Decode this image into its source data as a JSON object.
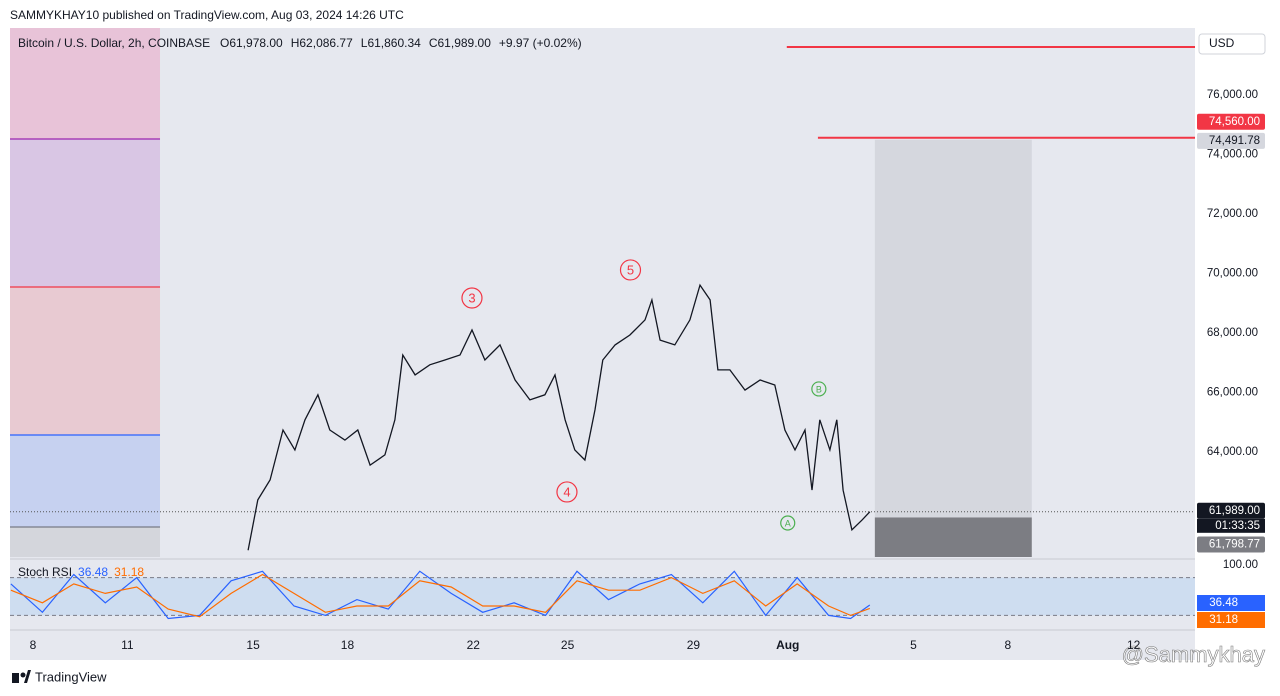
{
  "header": {
    "publisher": "SAMMYKHAY10 published on TradingView.com, Aug 03, 2024 14:26 UTC"
  },
  "footer": {
    "brand": "TradingView",
    "watermark": "@Sammykhay"
  },
  "chart_data": [
    {
      "type": "line",
      "title": "Bitcoin / U.S. Dollar, 2h, COINBASE",
      "ohlc_legend": {
        "open": "O61,978.00",
        "high": "H62,086.77",
        "low": "L61,860.34",
        "close": "C61,989.00",
        "change": "+9.97 (+0.02%)"
      },
      "currency": "USD",
      "color": "#131722",
      "x": [
        6.84,
        7.15,
        7.54,
        7.95,
        8.33,
        8.65,
        9.06,
        9.44,
        9.92,
        10.33,
        10.72,
        11.19,
        11.51,
        11.76,
        12.15,
        12.62,
        13.1,
        13.58,
        13.96,
        14.37,
        14.85,
        15.33,
        15.8,
        16.28,
        16.6,
        16.92,
        17.23,
        17.55,
        17.87,
        18.12,
        18.51,
        18.98,
        19.46,
        19.68,
        19.94,
        20.41,
        20.89,
        21.21,
        21.53,
        21.78,
        22.16,
        22.64,
        23.12,
        23.59,
        23.91,
        24.23,
        24.55,
        24.77,
        25.02,
        25.34,
        25.56,
        25.76,
        26.04,
        26.36,
        26.61
      ],
      "values": [
        60700,
        62390,
        63060,
        64740,
        64070,
        65080,
        65920,
        64740,
        64400,
        64740,
        63560,
        63900,
        65080,
        67260,
        66590,
        66930,
        67090,
        67260,
        68100,
        67090,
        67600,
        66420,
        65750,
        65920,
        66590,
        65080,
        64070,
        63730,
        65420,
        67090,
        67600,
        67930,
        68440,
        69110,
        67760,
        67600,
        68440,
        69610,
        69110,
        66760,
        66760,
        66080,
        66420,
        66250,
        64740,
        64070,
        64740,
        62720,
        65080,
        64070,
        65080,
        62720,
        61380,
        61710,
        61989
      ],
      "xlim": [
        -0.73,
        36.95
      ],
      "xticks": [
        {
          "value": 0,
          "label": "8"
        },
        {
          "value": 3,
          "label": "11"
        },
        {
          "value": 7,
          "label": "15"
        },
        {
          "value": 10,
          "label": "18"
        },
        {
          "value": 14,
          "label": "22"
        },
        {
          "value": 17,
          "label": "25"
        },
        {
          "value": 21,
          "label": "29"
        },
        {
          "value": 24,
          "label": "Aug"
        },
        {
          "value": 28,
          "label": "5"
        },
        {
          "value": 31,
          "label": "8"
        },
        {
          "value": 35,
          "label": "12"
        }
      ],
      "ylim": [
        60470,
        78250
      ],
      "yticks": [
        {
          "value": 64000,
          "label": "64,000.00"
        },
        {
          "value": 66000,
          "label": "66,000.00"
        },
        {
          "value": 68000,
          "label": "68,000.00"
        },
        {
          "value": 70000,
          "label": "70,000.00"
        },
        {
          "value": 72000,
          "label": "72,000.00"
        },
        {
          "value": 74000,
          "label": "74,000.00"
        },
        {
          "value": 76000,
          "label": "76,000.00"
        }
      ],
      "levels": [
        {
          "value": 77610,
          "from": 23.97,
          "color": "#f23645"
        },
        {
          "value": {
            "value": 74560,
            "label": "74,560.00"
          },
          "from": 24.96,
          "color": "#f23645"
        }
      ],
      "position": {
        "x": [
          26.77,
          31.76
        ],
        "entry": {
          "value": 61798.77,
          "label": "61,798.77"
        },
        "target": {
          "value": 74491.78,
          "label": "74,491.78"
        },
        "stop": 60470
      },
      "last_price": {
        "value": {
          "value": 61989,
          "label": "61,989.00"
        },
        "countdown": "01:33:35"
      },
      "zone_end": 4.04,
      "zone_edges": [
        74520,
        69546,
        64571,
        61479
      ],
      "zone_lines": [
        "#9c27b0",
        "#f23645",
        "#2962ff",
        "#787b86"
      ],
      "zone_fills": [
        "#e8bcd4",
        "#d6c0e2",
        "#e8c4cc",
        "#c0cdf0",
        "#d0d2d8"
      ],
      "annotations": [
        {
          "text": "3",
          "x": 13.96,
          "y": 69176,
          "color": "#f23645"
        },
        {
          "text": "5",
          "x": 19.0,
          "y": 70118,
          "color": "#f23645"
        },
        {
          "text": "4",
          "x": 16.98,
          "y": 62656,
          "color": "#f23645"
        },
        {
          "text": "B",
          "x": 24.99,
          "y": 66118,
          "color": "#4caf50"
        },
        {
          "text": "A",
          "x": 24.0,
          "y": 61613,
          "color": "#4caf50"
        }
      ]
    },
    {
      "type": "line",
      "title": "Stoch RSI",
      "ylim": [
        0,
        100
      ],
      "yticks": [
        {
          "value": 100,
          "label": "100.00"
        }
      ],
      "bands": [
        80,
        20
      ],
      "x": [
        -0.7,
        0.3,
        1.3,
        2.3,
        3.3,
        4.3,
        5.3,
        6.3,
        7.3,
        8.3,
        9.3,
        10.3,
        11.3,
        12.3,
        13.3,
        14.3,
        15.3,
        16.3,
        17.3,
        18.3,
        19.3,
        20.3,
        21.3,
        22.3,
        23.3,
        24.3,
        25.3,
        26.0,
        26.61
      ],
      "series": [
        {
          "color": "#2962ff",
          "values": [
            70,
            25,
            85,
            40,
            80,
            15,
            20,
            75,
            90,
            35,
            20,
            45,
            30,
            90,
            55,
            25,
            40,
            20,
            90,
            45,
            70,
            85,
            40,
            90,
            20,
            80,
            20,
            15,
            36.48
          ]
        },
        {
          "color": "#ff6d00",
          "values": [
            60,
            40,
            70,
            55,
            65,
            30,
            18,
            55,
            85,
            55,
            25,
            35,
            35,
            75,
            65,
            35,
            35,
            25,
            75,
            60,
            60,
            80,
            55,
            75,
            35,
            70,
            35,
            20,
            31.18
          ]
        }
      ]
    }
  ]
}
